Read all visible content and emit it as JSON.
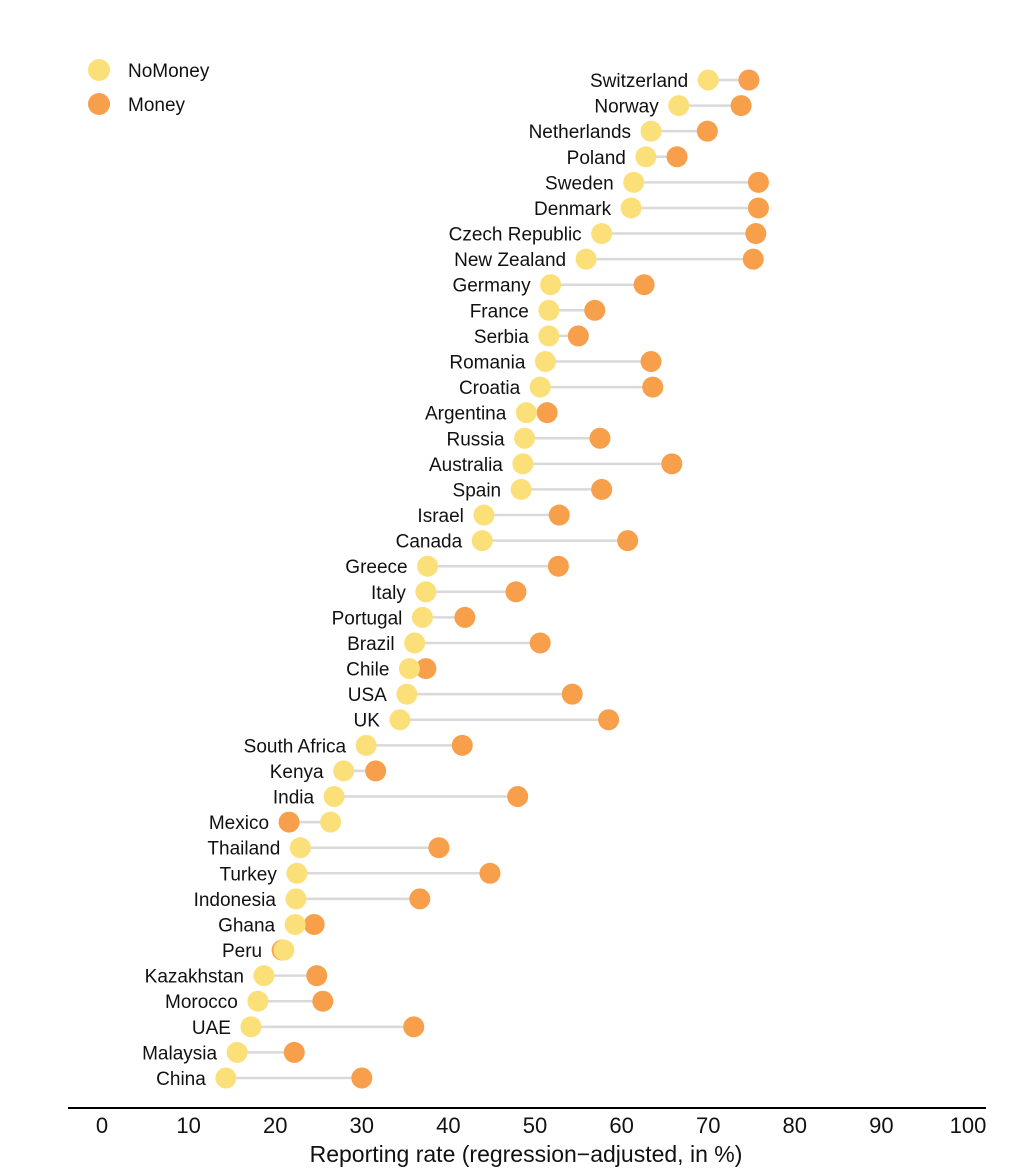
{
  "chart_data": {
    "type": "dumbbell",
    "xlabel": "Reporting rate (regression−adjusted, in %)",
    "xlim": [
      0,
      100
    ],
    "xticks": [
      0,
      10,
      20,
      30,
      40,
      50,
      60,
      70,
      80,
      90,
      100
    ],
    "grid": false,
    "legend_position": "top-left",
    "series": [
      {
        "name": "NoMoney",
        "color": "#fbe07a"
      },
      {
        "name": "Money",
        "color": "#f79f4b"
      }
    ],
    "connector_color": "#d9d9d9",
    "rows": [
      {
        "country": "Switzerland",
        "NoMoney": 70.0,
        "Money": 74.7
      },
      {
        "country": "Norway",
        "NoMoney": 66.6,
        "Money": 73.8
      },
      {
        "country": "Netherlands",
        "NoMoney": 63.4,
        "Money": 69.9
      },
      {
        "country": "Poland",
        "NoMoney": 62.8,
        "Money": 66.4
      },
      {
        "country": "Sweden",
        "NoMoney": 61.4,
        "Money": 75.8
      },
      {
        "country": "Denmark",
        "NoMoney": 61.1,
        "Money": 75.8
      },
      {
        "country": "Czech Republic",
        "NoMoney": 57.7,
        "Money": 75.5
      },
      {
        "country": "New Zealand",
        "NoMoney": 55.9,
        "Money": 75.2
      },
      {
        "country": "Germany",
        "NoMoney": 51.8,
        "Money": 62.6
      },
      {
        "country": "France",
        "NoMoney": 51.6,
        "Money": 56.9
      },
      {
        "country": "Serbia",
        "NoMoney": 51.6,
        "Money": 55.0
      },
      {
        "country": "Romania",
        "NoMoney": 51.2,
        "Money": 63.4
      },
      {
        "country": "Croatia",
        "NoMoney": 50.6,
        "Money": 63.6
      },
      {
        "country": "Argentina",
        "NoMoney": 49.0,
        "Money": 51.4
      },
      {
        "country": "Russia",
        "NoMoney": 48.8,
        "Money": 57.5
      },
      {
        "country": "Australia",
        "NoMoney": 48.6,
        "Money": 65.8
      },
      {
        "country": "Spain",
        "NoMoney": 48.4,
        "Money": 57.7
      },
      {
        "country": "Israel",
        "NoMoney": 44.1,
        "Money": 52.8
      },
      {
        "country": "Canada",
        "NoMoney": 43.9,
        "Money": 60.7
      },
      {
        "country": "Greece",
        "NoMoney": 37.6,
        "Money": 52.7
      },
      {
        "country": "Italy",
        "NoMoney": 37.4,
        "Money": 47.8
      },
      {
        "country": "Portugal",
        "NoMoney": 37.0,
        "Money": 41.9
      },
      {
        "country": "Brazil",
        "NoMoney": 36.1,
        "Money": 50.6
      },
      {
        "country": "Chile",
        "NoMoney": 35.5,
        "Money": 37.4
      },
      {
        "country": "USA",
        "NoMoney": 35.2,
        "Money": 54.3
      },
      {
        "country": "UK",
        "NoMoney": 34.4,
        "Money": 58.5
      },
      {
        "country": "South Africa",
        "NoMoney": 30.5,
        "Money": 41.6
      },
      {
        "country": "Kenya",
        "NoMoney": 27.9,
        "Money": 31.6
      },
      {
        "country": "India",
        "NoMoney": 26.8,
        "Money": 48.0
      },
      {
        "country": "Mexico",
        "NoMoney": 26.4,
        "Money": 21.6
      },
      {
        "country": "Thailand",
        "NoMoney": 22.9,
        "Money": 38.9
      },
      {
        "country": "Turkey",
        "NoMoney": 22.5,
        "Money": 44.8
      },
      {
        "country": "Indonesia",
        "NoMoney": 22.4,
        "Money": 36.7
      },
      {
        "country": "Ghana",
        "NoMoney": 22.3,
        "Money": 24.5
      },
      {
        "country": "Peru",
        "NoMoney": 21.0,
        "Money": 20.8
      },
      {
        "country": "Kazakhstan",
        "NoMoney": 18.7,
        "Money": 24.8
      },
      {
        "country": "Morocco",
        "NoMoney": 18.0,
        "Money": 25.5
      },
      {
        "country": "UAE",
        "NoMoney": 17.2,
        "Money": 36.0
      },
      {
        "country": "Malaysia",
        "NoMoney": 15.6,
        "Money": 22.2
      },
      {
        "country": "China",
        "NoMoney": 14.3,
        "Money": 30.0
      }
    ]
  }
}
